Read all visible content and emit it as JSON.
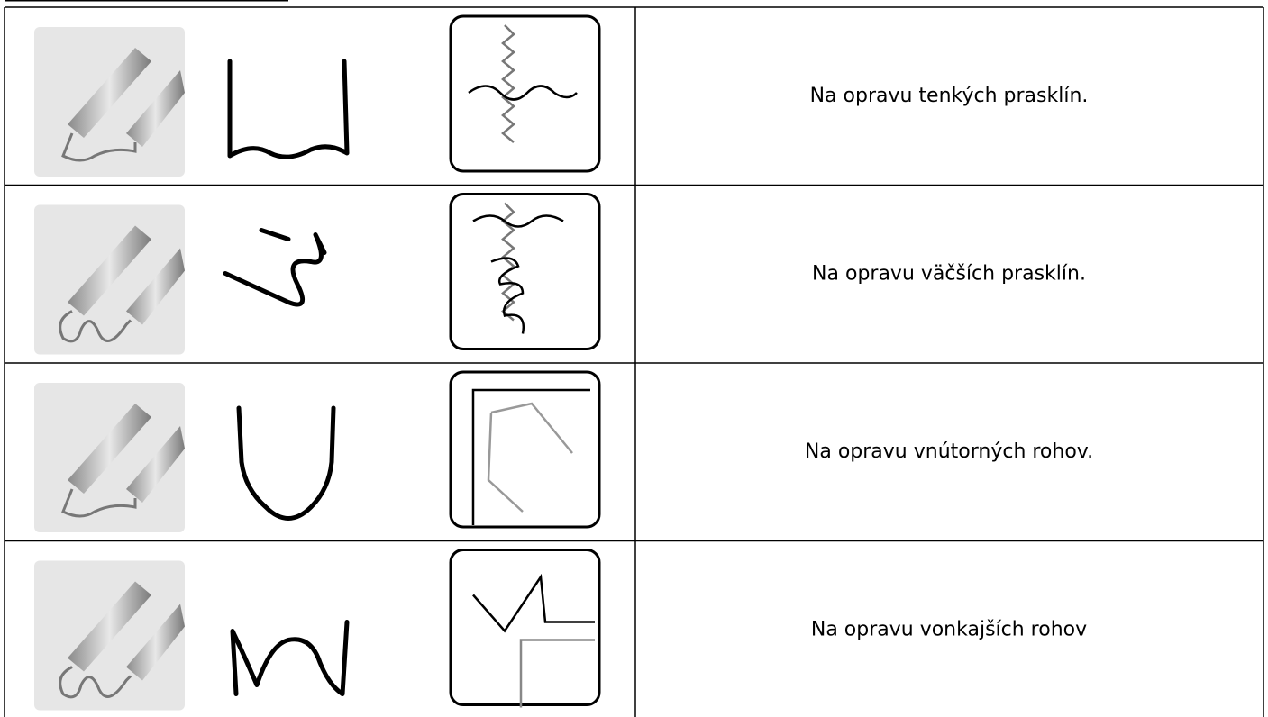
{
  "table": {
    "rows": [
      {
        "description": "Na opravu tenkých prasklín."
      },
      {
        "description": "Na opravu väčších prasklín."
      },
      {
        "description": "Na opravu vnútorných rohov."
      },
      {
        "description": "Na opravu vonkajších rohov"
      }
    ]
  }
}
